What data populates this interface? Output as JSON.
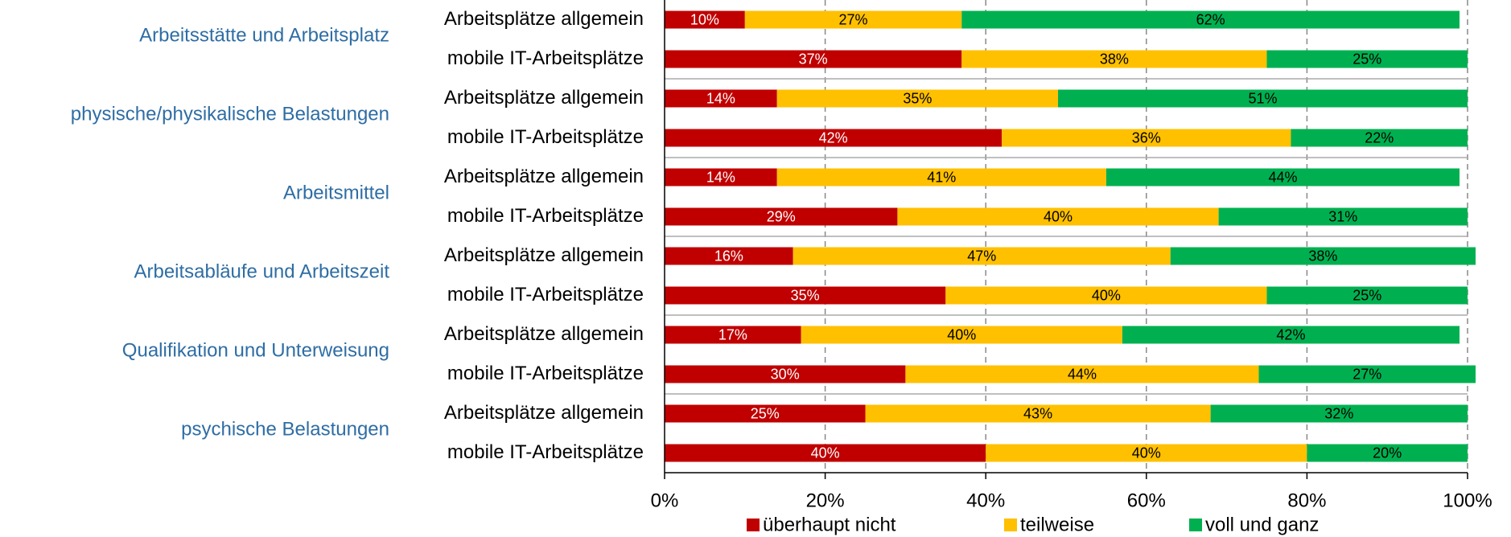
{
  "chart_data": {
    "type": "stacked-barh",
    "groups": [
      "Arbeitsstätte und Arbeitsplatz",
      "physische/physikalische Belastungen",
      "Arbeitsmittel",
      "Arbeitsabläufe und Arbeitszeit",
      "Qualifikation und Unterweisung",
      "psychische Belastungen"
    ],
    "categories": [
      "Arbeitsplätze allgemein",
      "mobile IT-Arbeitsplätze",
      "Arbeitsplätze allgemein",
      "mobile IT-Arbeitsplätze",
      "Arbeitsplätze allgemein",
      "mobile IT-Arbeitsplätze",
      "Arbeitsplätze allgemein",
      "mobile IT-Arbeitsplätze",
      "Arbeitsplätze allgemein",
      "mobile IT-Arbeitsplätze",
      "Arbeitsplätze allgemein",
      "mobile IT-Arbeitsplätze"
    ],
    "series": [
      {
        "name": "überhaupt nicht",
        "color": "#c00000",
        "values": [
          10,
          37,
          14,
          42,
          14,
          29,
          16,
          35,
          17,
          30,
          25,
          40
        ],
        "value_labels": [
          "10%",
          "37%",
          "14%",
          "42%",
          "14%",
          "29%",
          "16%",
          "35%",
          "17%",
          "30%",
          "25%",
          "40%"
        ]
      },
      {
        "name": "teilweise",
        "color": "#ffc000",
        "values": [
          27,
          38,
          35,
          36,
          41,
          40,
          47,
          40,
          40,
          44,
          43,
          40
        ],
        "value_labels": [
          "27%",
          "38%",
          "35%",
          "36%",
          "41%",
          "40%",
          "47%",
          "40%",
          "40%",
          "44%",
          "43%",
          "40%"
        ]
      },
      {
        "name": "voll und ganz",
        "color": "#00b050",
        "values": [
          62,
          25,
          51,
          22,
          44,
          31,
          38,
          25,
          42,
          27,
          32,
          20
        ],
        "value_labels": [
          "62%",
          "25%",
          "51%",
          "22%",
          "44%",
          "31%",
          "38%",
          "25%",
          "42%",
          "27%",
          "32%",
          "20%"
        ]
      }
    ],
    "xlim": [
      0,
      100
    ],
    "xticks": [
      {
        "value": 0,
        "label": "0%"
      },
      {
        "value": 20,
        "label": "20%"
      },
      {
        "value": 40,
        "label": "40%"
      },
      {
        "value": 60,
        "label": "60%"
      },
      {
        "value": 80,
        "label": "80%"
      },
      {
        "value": 100,
        "label": "100%"
      }
    ],
    "grid": true,
    "legend": "bottom"
  }
}
